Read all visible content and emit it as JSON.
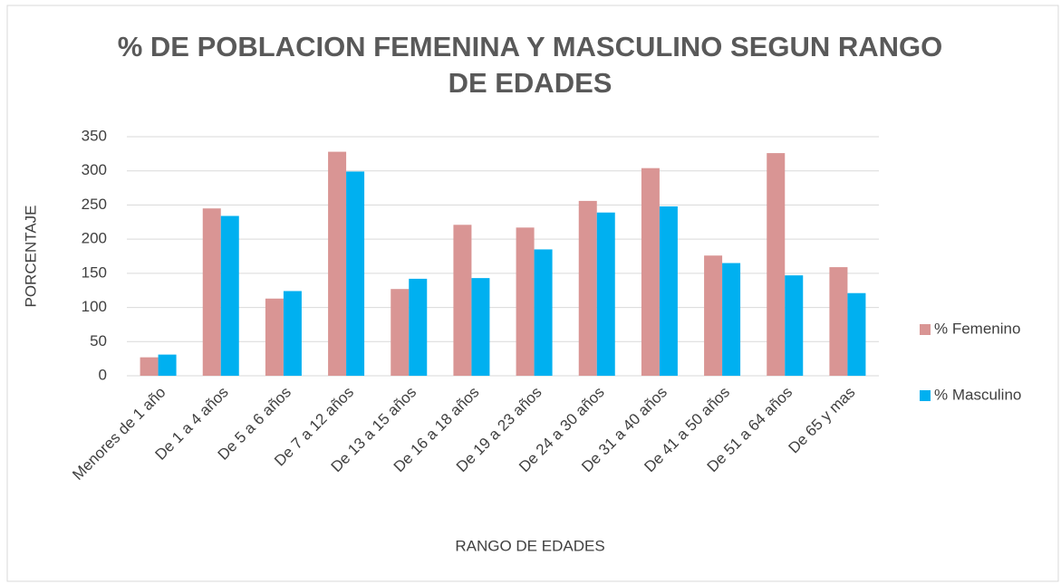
{
  "chart_data": {
    "type": "bar",
    "title": "% DE POBLACION FEMENINA Y MASCULINO SEGUN RANGO DE EDADES",
    "xlabel": "RANGO DE EDADES",
    "ylabel": "PORCENTAJE",
    "categories": [
      "Menores de 1 año",
      "De 1 a 4 años",
      "De 5 a 6 años",
      "De 7 a 12 años",
      "De 13 a 15 años",
      "De 16 a 18 años",
      "De 19 a 23 años",
      "De 24 a 30 años",
      "De 31 a 40 años",
      "De 41 a 50 años",
      "De 51 a 64 años",
      "De 65 y mas"
    ],
    "series": [
      {
        "name": "% Femenino",
        "color": "#d99594",
        "values": [
          27,
          245,
          113,
          328,
          127,
          221,
          217,
          256,
          304,
          176,
          326,
          159
        ]
      },
      {
        "name": "% Masculino",
        "color": "#00b0f0",
        "values": [
          31,
          234,
          124,
          299,
          142,
          143,
          185,
          239,
          248,
          165,
          147,
          121
        ]
      }
    ],
    "ylim": [
      0,
      350
    ],
    "yticks": [
      0,
      50,
      100,
      150,
      200,
      250,
      300,
      350
    ],
    "grid": true,
    "legend": "right"
  }
}
